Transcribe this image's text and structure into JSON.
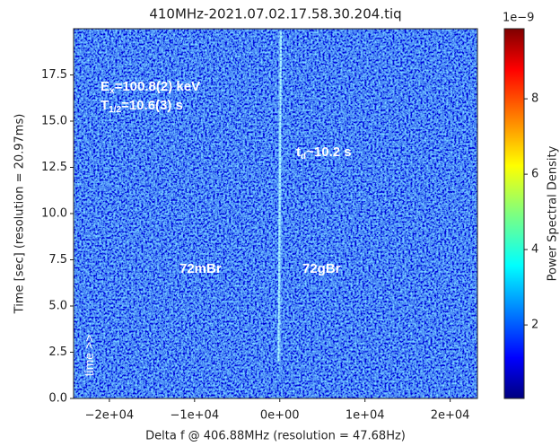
{
  "chart_data": {
    "type": "heatmap",
    "title": "410MHz-2021.07.02.17.58.30.204.tiq",
    "x_label": "Delta f @ 406.88MHz (resolution = 47.68Hz)",
    "y_label": "Time [sec] (resolution = 20.97ms)",
    "colorbar_label": "Power Spectral Density",
    "colorbar_offset": "1e−9",
    "colormap": "jet",
    "xlim": [
      -24200,
      23200
    ],
    "xticks": [
      {
        "value": -20000,
        "label": "−2e+04"
      },
      {
        "value": -10000,
        "label": "−1e+04"
      },
      {
        "value": 0,
        "label": "0e+00"
      },
      {
        "value": 10000,
        "label": "1e+04"
      },
      {
        "value": 20000,
        "label": "2e+04"
      }
    ],
    "ylim": [
      0,
      20
    ],
    "yticks": [
      {
        "value": 0,
        "label": "0.0"
      },
      2.5,
      {
        "value": 5,
        "label": "5.0"
      },
      7.5,
      {
        "value": 10,
        "label": "10.0"
      },
      12.5,
      {
        "value": 15,
        "label": "15.0"
      },
      17.5
    ],
    "clim": [
      0.05,
      9.86
    ],
    "cticks": [
      2,
      4,
      6,
      8
    ],
    "series": [
      {
        "color": "#a8f4ff",
        "x": [
          -150,
          150
        ],
        "y": [
          2.0,
          19.9
        ]
      }
    ],
    "annotations": [
      {
        "parts": [
          "E",
          "x",
          "=100.8(2) keV"
        ]
      },
      {
        "parts": [
          "T",
          "1/2",
          "=10.6(3) s"
        ]
      },
      {
        "parts": [
          "t",
          "d",
          "~10.2 s"
        ]
      },
      {
        "parts": [
          "72mBr"
        ]
      },
      {
        "parts": [
          "72gBr"
        ]
      },
      {
        "parts": [
          "time >>"
        ]
      }
    ]
  }
}
